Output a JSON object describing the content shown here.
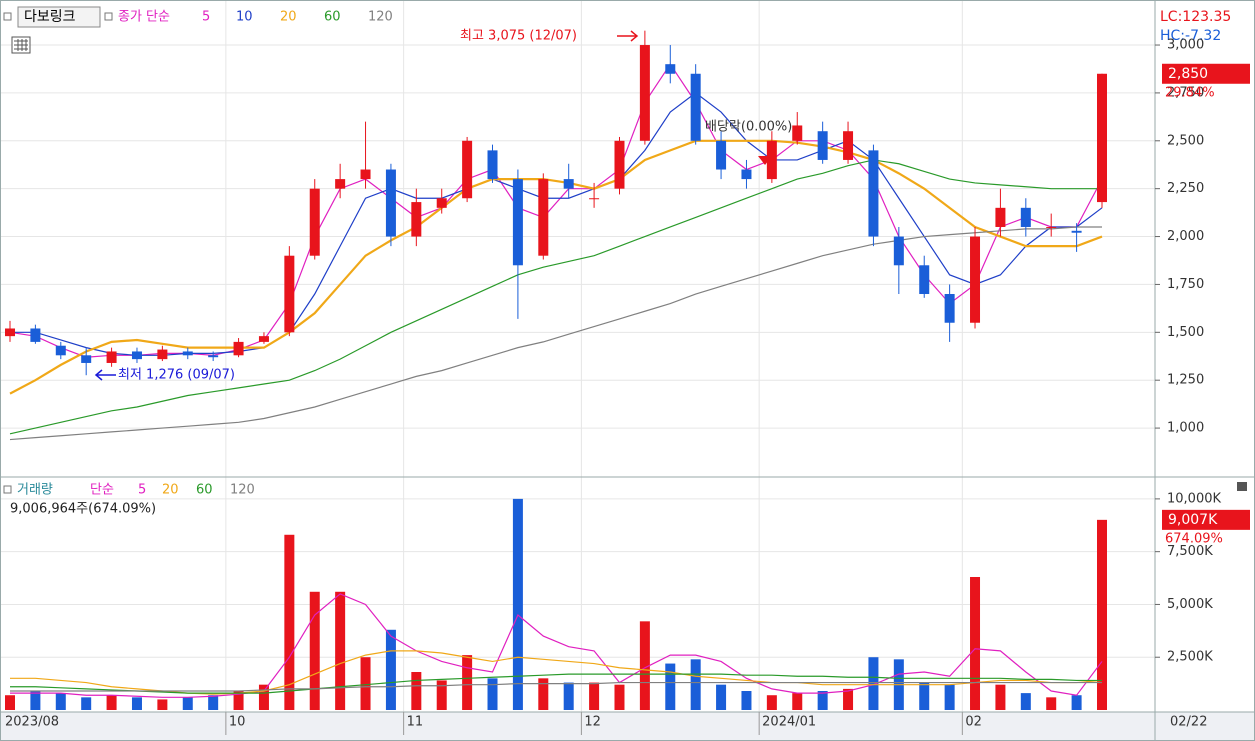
{
  "chart_data": [
    {
      "type": "candlestick",
      "title": "다보링크",
      "legend_label": "종가 단순",
      "up_color": "#e8141c",
      "down_color": "#1a5ed8",
      "ylim": [
        755,
        3209
      ],
      "yticks": [
        {
          "value": 1000,
          "label": "1,000"
        },
        {
          "value": 1250,
          "label": "1,250"
        },
        {
          "value": 1500,
          "label": "1,500"
        },
        {
          "value": 1750,
          "label": "1,750"
        },
        {
          "value": 2000,
          "label": "2,000"
        },
        {
          "value": 2250,
          "label": "2,250"
        },
        {
          "value": 2500,
          "label": "2,500"
        },
        {
          "value": 2750,
          "label": "2,750"
        },
        {
          "value": 3000,
          "label": "3,000"
        }
      ],
      "grid": true,
      "open": [
        1480,
        1520,
        1430,
        1380,
        1340,
        1400,
        1360,
        1400,
        1380,
        1380,
        1450,
        1500,
        1900,
        2250,
        2300,
        2350,
        2000,
        2150,
        2200,
        2450,
        2300,
        1900,
        2300,
        2200,
        2250,
        2500,
        2900,
        2850,
        2500,
        2350,
        2300,
        2500,
        2550,
        2400,
        2450,
        2000,
        1850,
        1700,
        1550,
        2050,
        2150,
        2050,
        2030,
        2180
      ],
      "high": [
        1560,
        1540,
        1450,
        1420,
        1420,
        1420,
        1430,
        1420,
        1400,
        1470,
        1500,
        1950,
        2300,
        2380,
        2600,
        2380,
        2250,
        2250,
        2520,
        2480,
        2350,
        2330,
        2380,
        2280,
        2520,
        3075,
        3000,
        2900,
        2550,
        2400,
        2550,
        2650,
        2600,
        2600,
        2480,
        2050,
        1900,
        1750,
        2050,
        2250,
        2200,
        2120,
        2070,
        2850
      ],
      "low": [
        1450,
        1440,
        1360,
        1276,
        1320,
        1340,
        1350,
        1360,
        1350,
        1370,
        1440,
        1480,
        1880,
        2200,
        2250,
        1950,
        1950,
        2120,
        2180,
        2280,
        1570,
        1880,
        2200,
        2150,
        2220,
        2480,
        2800,
        2480,
        2300,
        2250,
        2280,
        2480,
        2380,
        2380,
        1950,
        1700,
        1680,
        1450,
        1520,
        2000,
        2000,
        2000,
        1920,
        2150
      ],
      "close": [
        1520,
        1450,
        1380,
        1340,
        1400,
        1360,
        1410,
        1380,
        1370,
        1450,
        1480,
        1900,
        2250,
        2300,
        2350,
        2000,
        2180,
        2200,
        2500,
        2300,
        1850,
        2300,
        2250,
        2200,
        2500,
        3000,
        2850,
        2500,
        2350,
        2300,
        2500,
        2580,
        2400,
        2550,
        2000,
        1850,
        1700,
        1550,
        2000,
        2150,
        2050,
        2050,
        2020,
        2850
      ],
      "series": [
        {
          "name": "5",
          "color": "#e020c0",
          "values": [
            1500,
            1480,
            1420,
            1370,
            1380,
            1380,
            1390,
            1390,
            1380,
            1410,
            1460,
            1650,
            2000,
            2250,
            2300,
            2200,
            2100,
            2150,
            2300,
            2350,
            2150,
            2100,
            2250,
            2250,
            2350,
            2700,
            2900,
            2700,
            2450,
            2350,
            2400,
            2500,
            2500,
            2450,
            2300,
            2000,
            1800,
            1650,
            1750,
            2050,
            2100,
            2050,
            2050,
            2300
          ]
        },
        {
          "name": "10",
          "color": "#1f3fc8",
          "values": [
            1500,
            1500,
            1460,
            1420,
            1390,
            1380,
            1380,
            1390,
            1390,
            1400,
            1420,
            1500,
            1700,
            1950,
            2200,
            2250,
            2200,
            2200,
            2250,
            2300,
            2250,
            2200,
            2200,
            2250,
            2300,
            2450,
            2650,
            2750,
            2650,
            2500,
            2400,
            2400,
            2450,
            2500,
            2400,
            2200,
            2000,
            1800,
            1750,
            1800,
            1950,
            2050,
            2050,
            2150
          ]
        },
        {
          "name": "20",
          "color": "#f0a818",
          "values": [
            1180,
            1250,
            1330,
            1400,
            1450,
            1460,
            1440,
            1420,
            1420,
            1420,
            1420,
            1500,
            1600,
            1750,
            1900,
            1980,
            2050,
            2150,
            2250,
            2300,
            2300,
            2300,
            2280,
            2250,
            2300,
            2400,
            2450,
            2500,
            2500,
            2500,
            2500,
            2490,
            2470,
            2440,
            2400,
            2330,
            2250,
            2150,
            2050,
            2000,
            1950,
            1950,
            1950,
            2000
          ]
        },
        {
          "name": "60",
          "color": "#2a9a2a",
          "values": [
            970,
            1000,
            1030,
            1060,
            1090,
            1110,
            1140,
            1170,
            1190,
            1210,
            1230,
            1250,
            1300,
            1360,
            1430,
            1500,
            1560,
            1620,
            1680,
            1740,
            1800,
            1840,
            1870,
            1900,
            1950,
            2000,
            2050,
            2100,
            2150,
            2200,
            2250,
            2300,
            2330,
            2370,
            2400,
            2380,
            2340,
            2300,
            2280,
            2270,
            2260,
            2250,
            2250,
            2250
          ]
        },
        {
          "name": "120",
          "color": "#808080",
          "values": [
            940,
            950,
            960,
            970,
            980,
            990,
            1000,
            1010,
            1020,
            1030,
            1050,
            1080,
            1110,
            1150,
            1190,
            1230,
            1270,
            1300,
            1340,
            1380,
            1420,
            1450,
            1490,
            1530,
            1570,
            1610,
            1650,
            1700,
            1740,
            1780,
            1820,
            1860,
            1900,
            1930,
            1960,
            1980,
            2000,
            2010,
            2020,
            2030,
            2040,
            2040,
            2050,
            2050
          ]
        }
      ],
      "annotations": {
        "high": "최고 3,075 (12/07)",
        "low": "최저 1,276 (09/07)",
        "dividend": "배당락(0.00%)"
      },
      "lc": "LC:123.35",
      "hc": "HC:-7.32",
      "last_value_label": "2,850",
      "last_change_label": "29.84%"
    },
    {
      "type": "bar",
      "title": "거래량",
      "legend_label": "단순",
      "info": "9,006,964주(674.09%)",
      "categories": [
        "2023/08",
        null,
        null,
        null,
        null,
        null,
        null,
        null,
        null,
        "10",
        null,
        null,
        null,
        null,
        null,
        null,
        "11",
        null,
        null,
        null,
        null,
        null,
        null,
        "12",
        null,
        null,
        null,
        null,
        null,
        null,
        "2024/01",
        null,
        null,
        null,
        null,
        null,
        null,
        null,
        "02",
        null,
        null,
        null,
        null,
        null
      ],
      "last_date": "02/22",
      "ylim": [
        0,
        10800
      ],
      "yticks": [
        {
          "value": 2500,
          "label": "2,500K"
        },
        {
          "value": 5000,
          "label": "5,000K"
        },
        {
          "value": 7500,
          "label": "7,500K"
        },
        {
          "value": 10000,
          "label": "10,000K"
        }
      ],
      "values": [
        700,
        900,
        800,
        600,
        700,
        600,
        500,
        600,
        700,
        900,
        1200,
        8300,
        5600,
        5600,
        2500,
        3800,
        1800,
        1400,
        2600,
        1500,
        10000,
        1500,
        1300,
        1300,
        1200,
        4200,
        2200,
        2400,
        1200,
        900,
        700,
        800,
        900,
        1000,
        2500,
        2400,
        1300,
        1200,
        6300,
        1200,
        800,
        600,
        700,
        9007
      ],
      "series": [
        {
          "name": "5",
          "color": "#e020c0",
          "values": [
            800,
            800,
            800,
            700,
            700,
            650,
            600,
            600,
            650,
            750,
            900,
            2500,
            4500,
            5500,
            5000,
            3500,
            2800,
            2300,
            2000,
            1800,
            4500,
            3500,
            3000,
            2800,
            1300,
            2000,
            2600,
            2600,
            2300,
            1500,
            1000,
            800,
            800,
            900,
            1200,
            1700,
            1800,
            1600,
            2900,
            2800,
            1800,
            900,
            700,
            2300
          ]
        },
        {
          "name": "20",
          "color": "#f0a818",
          "values": [
            1500,
            1500,
            1400,
            1300,
            1100,
            1000,
            900,
            800,
            750,
            800,
            900,
            1200,
            1700,
            2200,
            2600,
            2800,
            2800,
            2700,
            2500,
            2300,
            2500,
            2400,
            2300,
            2200,
            2000,
            1900,
            1800,
            1600,
            1500,
            1400,
            1300,
            1300,
            1200,
            1200,
            1200,
            1200,
            1200,
            1200,
            1300,
            1400,
            1400,
            1300,
            1300,
            1400
          ]
        },
        {
          "name": "60",
          "color": "#2a9a2a",
          "values": [
            1100,
            1100,
            1050,
            1000,
            950,
            900,
            850,
            800,
            800,
            800,
            800,
            900,
            1000,
            1100,
            1200,
            1300,
            1400,
            1450,
            1500,
            1550,
            1600,
            1650,
            1700,
            1700,
            1700,
            1700,
            1700,
            1700,
            1700,
            1650,
            1650,
            1600,
            1600,
            1550,
            1550,
            1500,
            1500,
            1500,
            1500,
            1500,
            1450,
            1450,
            1400,
            1400
          ]
        },
        {
          "name": "120",
          "color": "#808080",
          "values": [
            900,
            900,
            900,
            900,
            900,
            900,
            900,
            900,
            900,
            900,
            950,
            1000,
            1000,
            1050,
            1100,
            1100,
            1150,
            1150,
            1200,
            1200,
            1250,
            1250,
            1250,
            1250,
            1300,
            1300,
            1300,
            1300,
            1300,
            1300,
            1300,
            1300,
            1300,
            1300,
            1300,
            1300,
            1300,
            1300,
            1300,
            1300,
            1300,
            1300,
            1300,
            1300
          ]
        }
      ],
      "last_value_label": "9,007K",
      "last_change_label": "674.09%"
    }
  ]
}
